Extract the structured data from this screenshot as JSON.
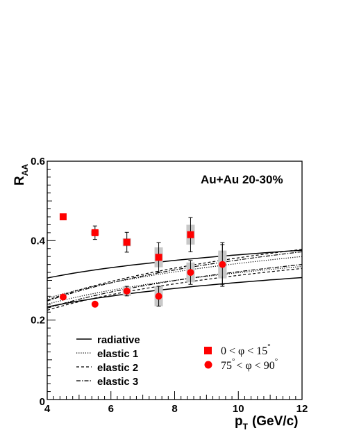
{
  "chart_data": {
    "type": "scatter",
    "annotation": "Au+Au 20-30%",
    "xlabel_main": "p",
    "xlabel_sub": "T",
    "xlabel_unit": "(GeV/c)",
    "ylabel_main": "R",
    "ylabel_sub": "AA",
    "xlim": [
      4,
      12
    ],
    "ylim": [
      0,
      0.6
    ],
    "x_ticks": [
      "4",
      "6",
      "8",
      "10",
      "12"
    ],
    "y_ticks": [
      "0",
      "0.2",
      "0.4",
      "0.6"
    ],
    "grid": false,
    "series": [
      {
        "name": "0 < φ < 15°",
        "legend_parts": [
          "0",
          "<",
          "φ",
          "<",
          "15",
          "°"
        ],
        "marker": "square",
        "color": "#ff0000",
        "points": [
          {
            "x": 4.5,
            "y": 0.46,
            "stat_err": 0.0,
            "sys_err": 0.0
          },
          {
            "x": 5.5,
            "y": 0.42,
            "stat_err": 0.017,
            "sys_err": 0.006
          },
          {
            "x": 6.5,
            "y": 0.396,
            "stat_err": 0.025,
            "sys_err": 0.01
          },
          {
            "x": 7.5,
            "y": 0.358,
            "stat_err": 0.037,
            "sys_err": 0.025
          },
          {
            "x": 8.5,
            "y": 0.415,
            "stat_err": 0.043,
            "sys_err": 0.025
          },
          {
            "x": 9.5,
            "y": 0.34,
            "stat_err": 0.055,
            "sys_err": 0.035
          }
        ]
      },
      {
        "name": "75° < φ < 90°",
        "legend_parts": [
          "75",
          "°",
          "<",
          "φ",
          "<",
          "90",
          "°"
        ],
        "marker": "circle",
        "color": "#ff0000",
        "points": [
          {
            "x": 4.5,
            "y": 0.258,
            "stat_err": 0.0,
            "sys_err": 0.0
          },
          {
            "x": 5.5,
            "y": 0.24,
            "stat_err": 0.0,
            "sys_err": 0.0
          },
          {
            "x": 6.5,
            "y": 0.273,
            "stat_err": 0.012,
            "sys_err": 0.012
          },
          {
            "x": 7.5,
            "y": 0.26,
            "stat_err": 0.025,
            "sys_err": 0.025
          },
          {
            "x": 8.5,
            "y": 0.32,
            "stat_err": 0.03,
            "sys_err": 0.025
          },
          {
            "x": 9.5,
            "y": 0.34,
            "stat_err": 0.05,
            "sys_err": 0.03
          }
        ]
      }
    ],
    "curves": [
      {
        "name": "radiative",
        "dash": "solid",
        "x": [
          4,
          12
        ],
        "upper": [
          0.306,
          0.376
        ],
        "lower": [
          0.233,
          0.307
        ]
      },
      {
        "name": "elastic 1",
        "dash": "dotted",
        "x": [
          4,
          12
        ],
        "upper": [
          0.255,
          0.36
        ],
        "lower": [
          0.24,
          0.335
        ]
      },
      {
        "name": "elastic 2",
        "dash": "dashed",
        "x": [
          4,
          12
        ],
        "upper": [
          0.25,
          0.378
        ],
        "lower": [
          0.225,
          0.33
        ]
      },
      {
        "name": "elastic 3",
        "dash": "dashdot",
        "x": [
          4,
          12
        ],
        "upper": [
          0.248,
          0.372
        ],
        "lower": [
          0.23,
          0.34
        ]
      }
    ]
  }
}
